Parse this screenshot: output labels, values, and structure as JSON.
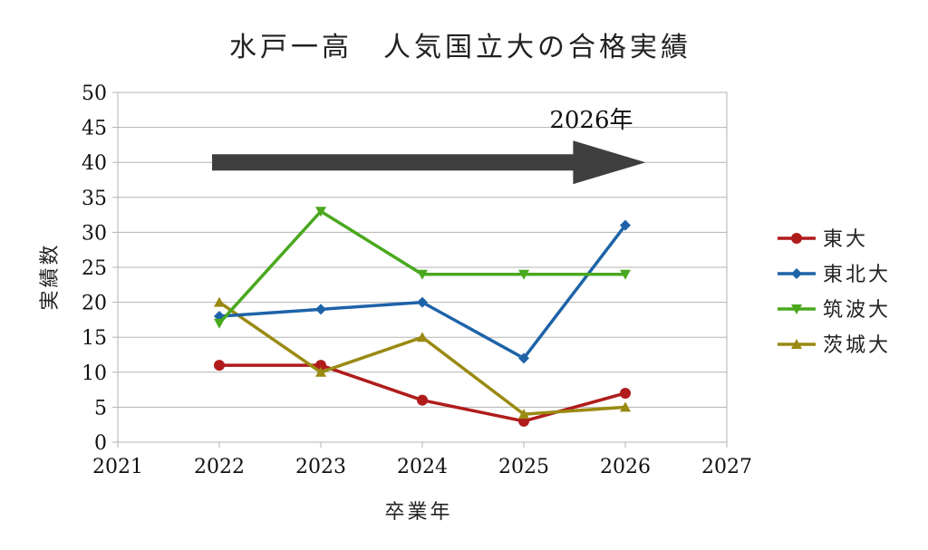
{
  "chart_data": {
    "type": "line",
    "title": "水戸一高　人気国立大の合格実績",
    "xlabel": "卒業年",
    "ylabel": "実績数",
    "xlim": [
      2021,
      2027
    ],
    "ylim": [
      0,
      50
    ],
    "x_ticks": [
      "2021",
      "2022",
      "2023",
      "2024",
      "2025",
      "2026",
      "2027"
    ],
    "y_ticks": [
      "0",
      "5",
      "10",
      "15",
      "20",
      "25",
      "30",
      "35",
      "40",
      "45",
      "50"
    ],
    "grid": "horizontal",
    "legend_position": "right",
    "series": [
      {
        "name": "東大",
        "color": "#b01c1c",
        "marker": "circle",
        "points": [
          [
            2022,
            11
          ],
          [
            2023,
            11
          ],
          [
            2024,
            6
          ],
          [
            2025,
            3
          ],
          [
            2026,
            7
          ]
        ]
      },
      {
        "name": "東北大",
        "color": "#1e63a8",
        "marker": "diamond",
        "points": [
          [
            2022,
            18
          ],
          [
            2023,
            19
          ],
          [
            2024,
            20
          ],
          [
            2025,
            12
          ],
          [
            2026,
            31
          ]
        ]
      },
      {
        "name": "筑波大",
        "color": "#4aa81e",
        "marker": "triangle-down",
        "points": [
          [
            2022,
            17
          ],
          [
            2023,
            33
          ],
          [
            2024,
            24
          ],
          [
            2025,
            24
          ],
          [
            2026,
            24
          ]
        ]
      },
      {
        "name": "茨城大",
        "color": "#9a8a12",
        "marker": "triangle-up",
        "points": [
          [
            2022,
            20
          ],
          [
            2023,
            10
          ],
          [
            2024,
            15
          ],
          [
            2025,
            4
          ],
          [
            2026,
            5
          ]
        ]
      }
    ],
    "annotation": {
      "text": "2026年",
      "arrow_color": "#3f3f3f",
      "arrow_from": [
        2022,
        40
      ],
      "arrow_to": [
        2026.2,
        40
      ]
    }
  }
}
